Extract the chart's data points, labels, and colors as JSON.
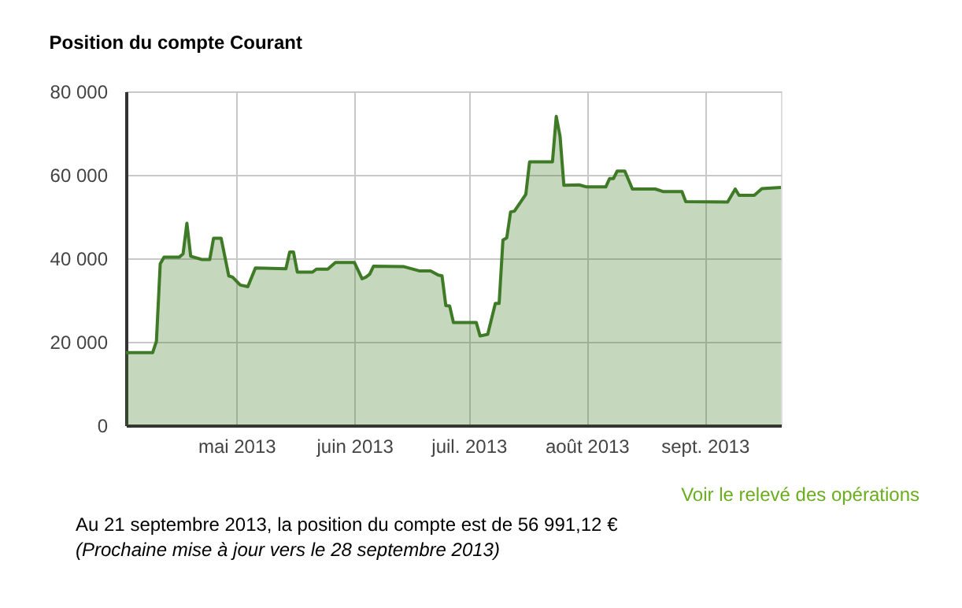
{
  "chart_data": {
    "type": "area",
    "title": "Position du compte Courant",
    "x": [
      "2013-04-02",
      "2013-04-09",
      "2013-04-10",
      "2013-04-11",
      "2013-04-12",
      "2013-04-16",
      "2013-04-17",
      "2013-04-18",
      "2013-04-19",
      "2013-04-22",
      "2013-04-24",
      "2013-04-25",
      "2013-04-27",
      "2013-04-29",
      "2013-04-30",
      "2013-05-02",
      "2013-05-04",
      "2013-05-06",
      "2013-05-14",
      "2013-05-15",
      "2013-05-16",
      "2013-05-17",
      "2013-05-21",
      "2013-05-22",
      "2013-05-25",
      "2013-05-27",
      "2013-06-01",
      "2013-06-03",
      "2013-06-04",
      "2013-06-05",
      "2013-06-06",
      "2013-06-14",
      "2013-06-18",
      "2013-06-21",
      "2013-06-23",
      "2013-06-24",
      "2013-06-25",
      "2013-06-26",
      "2013-06-27",
      "2013-07-03",
      "2013-07-04",
      "2013-07-06",
      "2013-07-08",
      "2013-07-09",
      "2013-07-10",
      "2013-07-11",
      "2013-07-12",
      "2013-07-13",
      "2013-07-16",
      "2013-07-17",
      "2013-07-23",
      "2013-07-24",
      "2013-07-25",
      "2013-07-26",
      "2013-07-30",
      "2013-08-01",
      "2013-08-06",
      "2013-08-07",
      "2013-08-08",
      "2013-08-09",
      "2013-08-11",
      "2013-08-13",
      "2013-08-19",
      "2013-08-21",
      "2013-08-26",
      "2013-08-27",
      "2013-09-07",
      "2013-09-09",
      "2013-09-10",
      "2013-09-14",
      "2013-09-16",
      "2013-09-21"
    ],
    "series": [
      {
        "color": "#3f7a26",
        "values": [
          17400,
          17400,
          20100,
          38700,
          40300,
          40300,
          41100,
          48400,
          40500,
          39700,
          39700,
          44800,
          44800,
          35800,
          35500,
          33600,
          33200,
          37700,
          37500,
          41500,
          41500,
          36700,
          36700,
          37400,
          37400,
          39000,
          39000,
          35100,
          35500,
          36200,
          38100,
          38000,
          37000,
          37000,
          36000,
          35800,
          28700,
          28600,
          24600,
          24600,
          21400,
          21800,
          29200,
          29200,
          44400,
          44900,
          51100,
          51300,
          55300,
          63100,
          63100,
          74000,
          69200,
          57500,
          57600,
          57100,
          57100,
          59100,
          59100,
          60900,
          60900,
          56600,
          56600,
          56000,
          56000,
          53600,
          53500,
          56600,
          55100,
          55100,
          56700,
          57000
        ]
      }
    ],
    "xlim": [
      "2013-04-02",
      "2013-09-21"
    ],
    "xticks": [
      {
        "value": "2013-05-01",
        "label": "mai 2013"
      },
      {
        "value": "2013-06-01",
        "label": "juin 2013"
      },
      {
        "value": "2013-07-01",
        "label": "juil. 2013"
      },
      {
        "value": "2013-08-01",
        "label": "août 2013"
      },
      {
        "value": "2013-09-01",
        "label": "sept. 2013"
      }
    ],
    "ylim": [
      0,
      80000
    ],
    "yticks": [
      {
        "value": 0,
        "label": "0"
      },
      {
        "value": 20000,
        "label": "20 000"
      },
      {
        "value": 40000,
        "label": "40 000"
      },
      {
        "value": 60000,
        "label": "60 000"
      },
      {
        "value": 80000,
        "label": "80 000"
      }
    ],
    "grid": true,
    "annotations": [
      "Voir le relevé des opérations",
      "Au 21 septembre 2013, la position du compte est de 56 991,12 €",
      "(Prochaine mise à jour vers le 28 septembre 2013)"
    ]
  }
}
